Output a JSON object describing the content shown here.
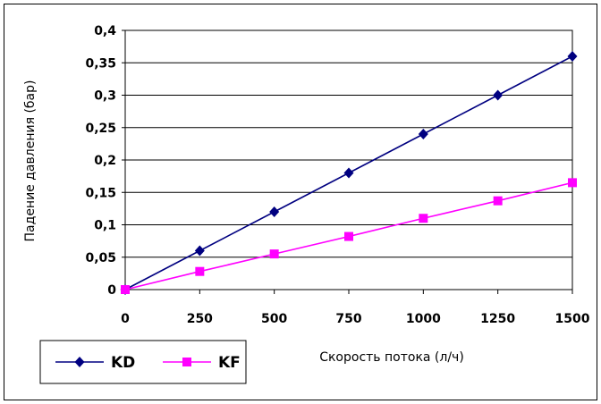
{
  "chart_data": {
    "type": "line",
    "title": "",
    "xlabel": "Скорость потока (л/ч)",
    "ylabel": "Падение давления (бар)",
    "x": [
      0,
      250,
      500,
      750,
      1000,
      1250,
      1500
    ],
    "x_tick_labels": [
      "0",
      "250",
      "500",
      "750",
      "1000",
      "1250",
      "1500"
    ],
    "y_tick_labels": [
      "0",
      "0,05",
      "0,1",
      "0,15",
      "0,2",
      "0,25",
      "0,3",
      "0,35",
      "0,4"
    ],
    "xlim": [
      0,
      1500
    ],
    "ylim": [
      0,
      0.4
    ],
    "grid": "horizontal",
    "legend_position": "bottom-left",
    "series": [
      {
        "name": "KD",
        "color": "#000080",
        "marker": "diamond",
        "values": [
          0,
          0.06,
          0.12,
          0.18,
          0.24,
          0.3,
          0.36
        ]
      },
      {
        "name": "KF",
        "color": "#ff00ff",
        "marker": "square",
        "values": [
          0,
          0.028,
          0.055,
          0.082,
          0.11,
          0.137,
          0.165
        ]
      }
    ]
  }
}
